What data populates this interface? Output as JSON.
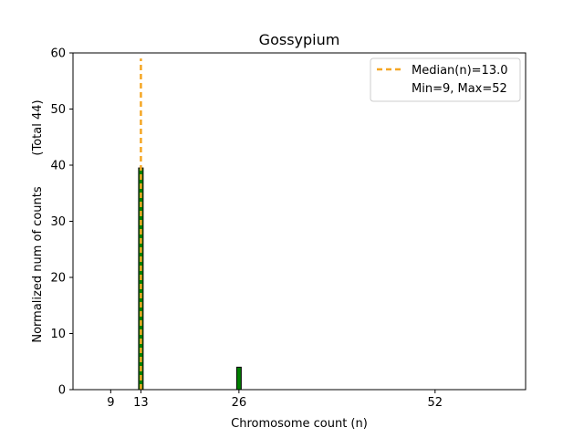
{
  "chart_data": {
    "type": "bar",
    "title": "Gossypium",
    "xlabel": "Chromosome count (n)",
    "ylabel": "Normalized num of counts",
    "ylabel_total": "(Total 44)",
    "xlim": [
      4,
      64
    ],
    "ylim": [
      0,
      60
    ],
    "xticks": [
      9,
      13,
      26,
      52
    ],
    "yticks": [
      0,
      10,
      20,
      30,
      40,
      50,
      60
    ],
    "bin_width": 0.6,
    "bars": [
      {
        "x": 13,
        "value": 39.5
      },
      {
        "x": 26,
        "value": 4
      }
    ],
    "bar_color": "#008000",
    "median": {
      "value": 13.0,
      "top": 59,
      "color": "#f5a623"
    },
    "legend": {
      "placement": "top-right",
      "entries": [
        "Median(n)=13.0",
        "Min=9, Max=52"
      ]
    }
  }
}
